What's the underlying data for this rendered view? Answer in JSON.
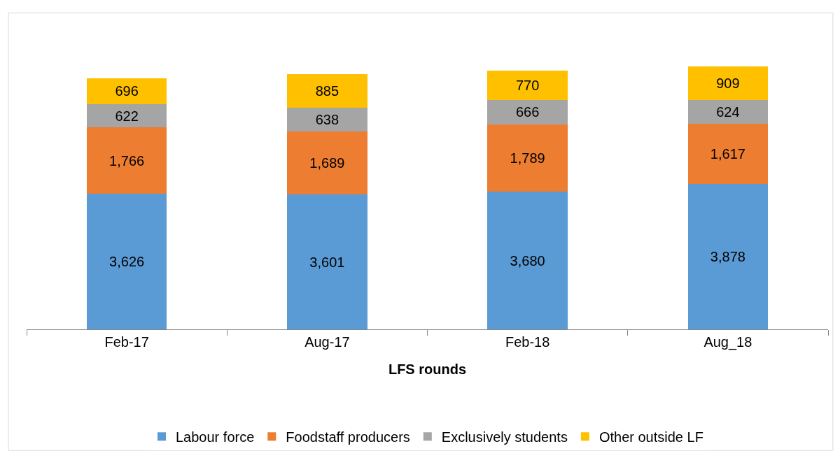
{
  "chart_data": {
    "type": "bar",
    "stacked": true,
    "xlabel": "LFS rounds",
    "categories": [
      "Feb-17",
      "Aug-17",
      "Feb-18",
      "Aug_18"
    ],
    "series": [
      {
        "name": "Labour force",
        "color": "#5b9bd5",
        "values": [
          3626,
          3601,
          3680,
          3878
        ],
        "value_labels": [
          "3,626",
          "3,601",
          "3,680",
          "3,878"
        ]
      },
      {
        "name": "Foodstaff producers",
        "color": "#ed7d31",
        "values": [
          1766,
          1689,
          1789,
          1617
        ],
        "value_labels": [
          "1,766",
          "1,689",
          "1,789",
          "1,617"
        ]
      },
      {
        "name": "Exclusively students",
        "color": "#a5a5a5",
        "values": [
          622,
          638,
          666,
          624
        ],
        "value_labels": [
          "622",
          "638",
          "666",
          "624"
        ]
      },
      {
        "name": "Other outside LF",
        "color": "#ffc000",
        "values": [
          696,
          885,
          770,
          909
        ],
        "value_labels": [
          "696",
          "885",
          "770",
          "909"
        ]
      }
    ],
    "legend": "bottom",
    "tick_labels": "x"
  }
}
